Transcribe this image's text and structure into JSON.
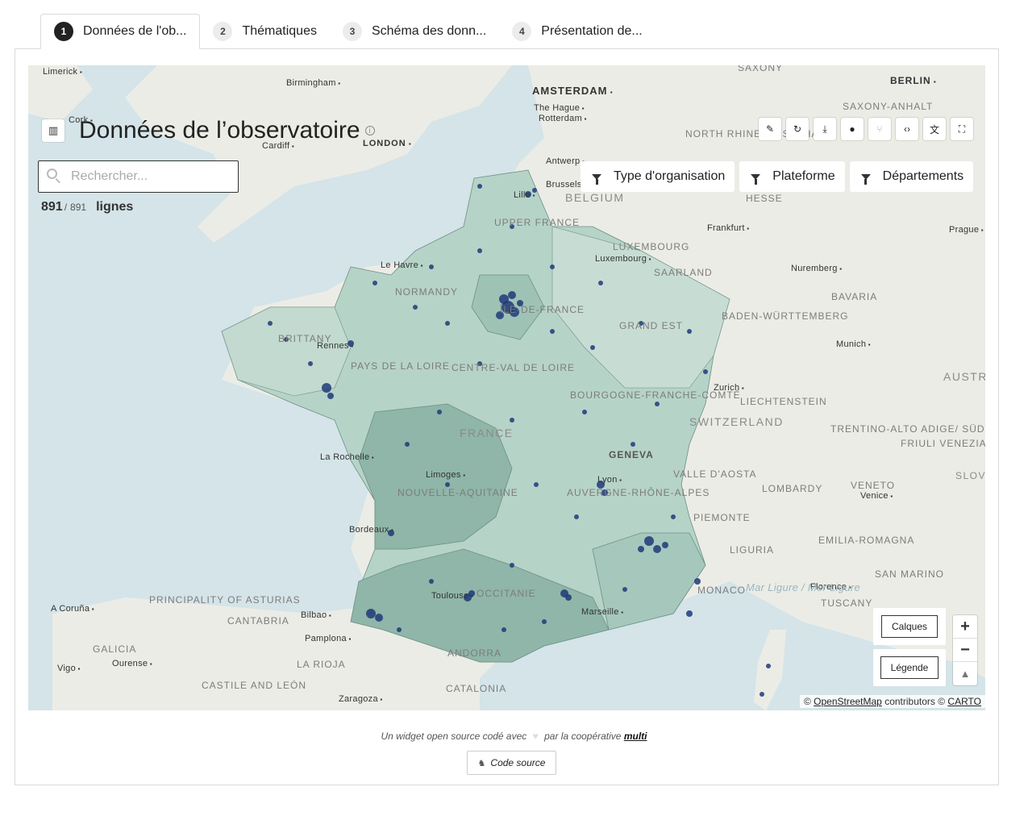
{
  "tabs": [
    {
      "num": "1",
      "label": "Données de l'ob..."
    },
    {
      "num": "2",
      "label": "Thématiques"
    },
    {
      "num": "3",
      "label": "Schéma des donn..."
    },
    {
      "num": "4",
      "label": "Présentation de..."
    }
  ],
  "header": {
    "title": "Données de l’observatoire",
    "icons": [
      "map-icon",
      "info-icon"
    ]
  },
  "toolbar": [
    "pencil-icon",
    "reload-icon",
    "download-icon",
    "user-icon",
    "git-branch-icon",
    "code-icon",
    "translate-icon",
    "fullscreen-icon"
  ],
  "search": {
    "placeholder": "Rechercher...",
    "value": ""
  },
  "counter": {
    "shown": "891",
    "total": "891",
    "unit": "lignes"
  },
  "filters": [
    {
      "label": "Type d'organisation"
    },
    {
      "label": "Plateforme"
    },
    {
      "label": "Départements"
    }
  ],
  "map": {
    "labels": {
      "limerick": "Limerick",
      "birmingham": "Birmingham",
      "cork": "Cork",
      "london": "LONDON",
      "cardiff": "Cardiff",
      "amsterdam": "AMSTERDAM",
      "the_hague": "The Hague",
      "rotterdam": "Rotterdam",
      "antwerp": "Antwerp",
      "brussels": "Brussels",
      "belgium": "BELGIUM",
      "saxony": "SAXONY",
      "berlin": "BERLIN",
      "saxony_anhalt": "SAXONY-ANHALT",
      "nrw": "NORTH RHINE-WESTPHALIA",
      "hesse": "HESSE",
      "frankfurt": "Frankfurt",
      "prague": "Prague",
      "luxembourg_c": "LUXEMBOURG",
      "luxembourg": "Luxembourg",
      "saarland": "SAARLAND",
      "nuremberg": "Nuremberg",
      "bavaria": "BAVARIA",
      "bw": "BADEN-WÜRTTEMBERG",
      "munich": "Munich",
      "austria": "AUSTRIA",
      "zurich": "Zurich",
      "liechtenstein": "LIECHTENSTEIN",
      "switzerland": "SWITZERLAND",
      "trentino": "TRENTINO-ALTO ADIGE/ SÜDTIROL",
      "friuli": "FRIULI VENEZIA GIULIA",
      "slovenia": "SLOVEN",
      "geneva": "GENEVA",
      "valle": "VALLE D'AOSTA",
      "lombardy": "LOMBARDY",
      "veneto": "VENETO",
      "venice": "Venice",
      "piemonte": "PIEMONTE",
      "emilia": "EMILIA-ROMAGNA",
      "liguria": "LIGURIA",
      "florence": "Florence",
      "san_marino": "SAN MARINO",
      "tuscany": "TUSCANY",
      "sea": "Mar Ligure / Mer Ligure",
      "upper_france": "UPPER FRANCE",
      "normandy": "NORMANDY",
      "idf": "ÎLE-DE-FRANCE",
      "grand_est": "GRAND EST",
      "brittany": "BRITTANY",
      "pdl": "PAYS DE LA LOIRE",
      "centre": "CENTRE-VAL DE LOIRE",
      "bfc": "BOURGOGNE-FRANCHE-COMTÉ",
      "france": "FRANCE",
      "nouvelle": "NOUVELLE-AQUITAINE",
      "ara": "AUVERGNE-RHÔNE-ALPES",
      "occitanie": "OCCITANIE",
      "le_havre": "Le Havre",
      "rennes": "Rennes",
      "la_rochelle": "La Rochelle",
      "limoges": "Limoges",
      "bordeaux": "Bordeaux",
      "lyon": "Lyon",
      "toulouse": "Toulouse",
      "marseille": "Marseille",
      "lille": "Lille",
      "monaco": "MONACO",
      "a_coruna": "A Coruña",
      "principality": "PRINCIPALITY OF ASTURIAS",
      "cantabria": "CANTABRIA",
      "bilbao": "Bilbao",
      "galicia": "GALICIA",
      "ourense": "Ourense",
      "pamplona": "Pamplona",
      "vigo": "Vigo",
      "la_rioja": "LA RIOJA",
      "castile": "CASTILE AND LEÓN",
      "zaragoza": "Zaragoza",
      "catalonia": "CATALONIA",
      "andorra": "ANDORRA"
    },
    "layers_label": "Calques",
    "legend_label": "Légende",
    "zoom_in": "+",
    "zoom_out": "−",
    "compass": "▲",
    "attribution": {
      "prefix": "©",
      "osm": "OpenStreetMap",
      "middle": "contributors ©",
      "carto": "CARTO"
    }
  },
  "footer": {
    "text_before": "Un widget open source codé avec",
    "heart": "♥",
    "text_mid": "par la coopérative",
    "brand": "multi",
    "code_button": "Code source"
  },
  "colors": {
    "dot": "#1f3a7a",
    "region_fill": "#b6d3c8",
    "region_fill_dark": "#8fb6a8",
    "water": "#d4e4e8",
    "land": "#ecece6"
  }
}
